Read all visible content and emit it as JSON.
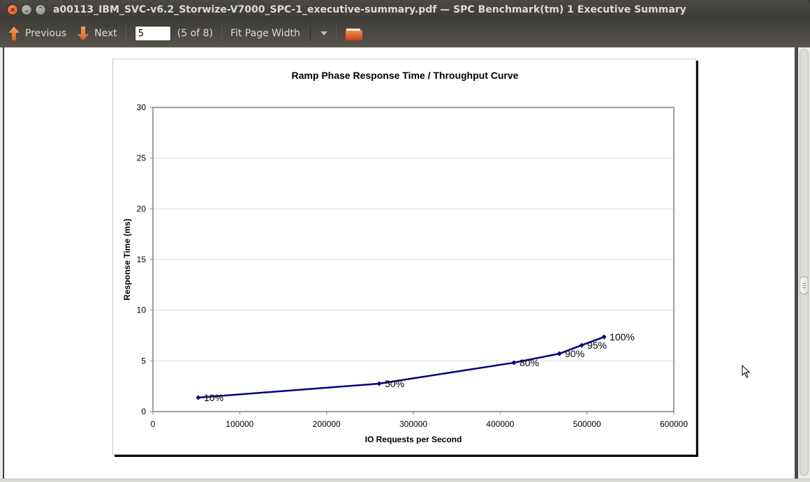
{
  "window": {
    "title": "a00113_IBM_SVC-v6.2_Storwize-V7000_SPC-1_executive-summary.pdf — SPC Benchmark(tm) 1 Executive Summary",
    "buttons": {
      "close": "×",
      "minimize": "⌄",
      "maximize": "⌃"
    }
  },
  "toolbar": {
    "previous_label": "Previous",
    "next_label": "Next",
    "page_input_value": "5",
    "page_count": "(5 of 8)",
    "zoom_mode": "Fit Page Width",
    "accent_color": "#e8732d"
  },
  "chart_data": {
    "type": "line",
    "title": "Ramp Phase Response Time / Throughput Curve",
    "xlabel": "IO Requests per Second",
    "ylabel": "Response Time (ms)",
    "xlim": [
      0,
      600000
    ],
    "ylim": [
      0,
      30
    ],
    "x_ticks": [
      "0",
      "100000",
      "200000",
      "300000",
      "400000",
      "500000",
      "600000"
    ],
    "y_ticks": [
      "0",
      "5",
      "10",
      "15",
      "20",
      "25",
      "30"
    ],
    "grid": "horizontal",
    "legend": null,
    "series": [
      {
        "name": "Ramp Phase",
        "color": "#000080",
        "marker": "diamond",
        "points": [
          {
            "label": "10%",
            "x": 52300,
            "y": 1.38
          },
          {
            "label": "50%",
            "x": 260600,
            "y": 2.75
          },
          {
            "label": "80%",
            "x": 415800,
            "y": 4.82
          },
          {
            "label": "90%",
            "x": 468100,
            "y": 5.71
          },
          {
            "label": "95%",
            "x": 493800,
            "y": 6.54
          },
          {
            "label": "100%",
            "x": 519600,
            "y": 7.36
          }
        ]
      }
    ]
  }
}
